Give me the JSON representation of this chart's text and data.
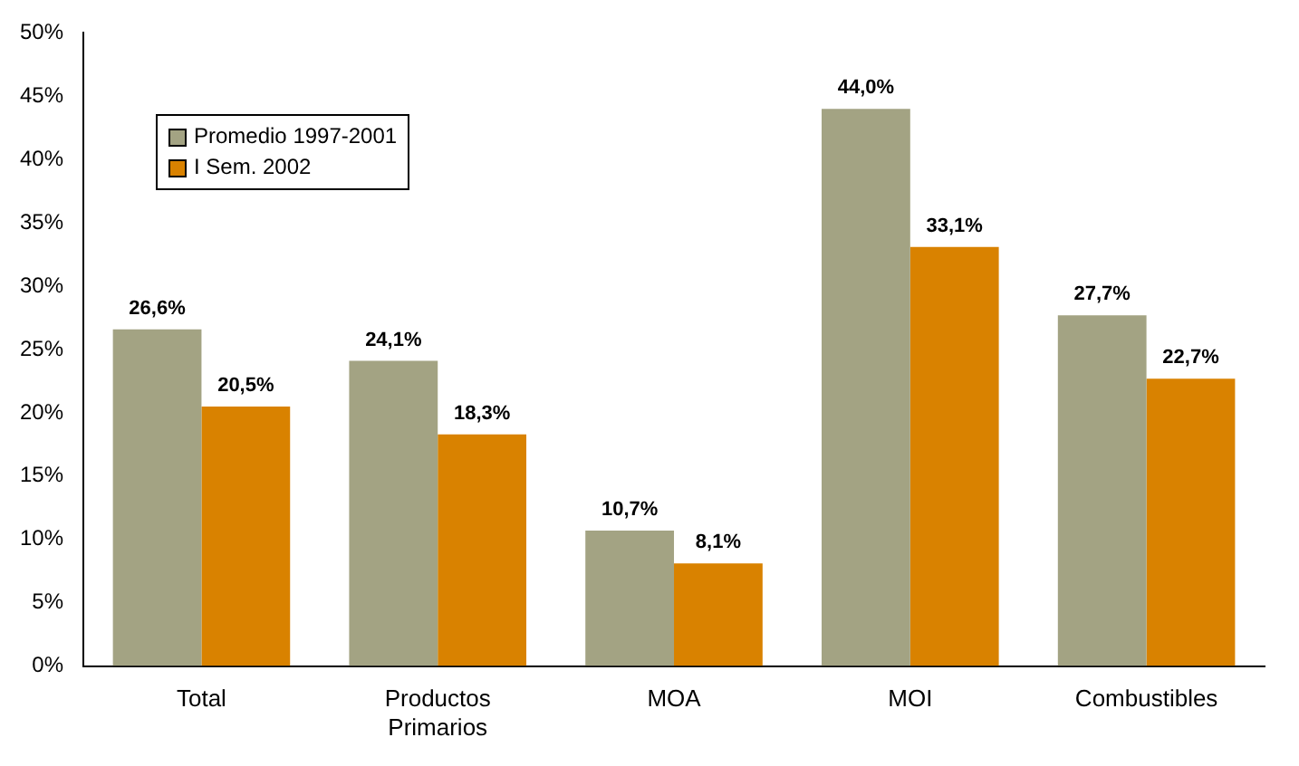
{
  "chart_data": {
    "type": "bar",
    "categories": [
      "Total",
      "Productos Primarios",
      "MOA",
      "MOI",
      "Combustibles"
    ],
    "series": [
      {
        "name": "Promedio 1997-2001",
        "color": "#a3a383",
        "values": [
          26.6,
          24.1,
          10.7,
          44.0,
          27.7
        ],
        "value_labels": [
          "26,6%",
          "24,1%",
          "10,7%",
          "44,0%",
          "27,7%"
        ]
      },
      {
        "name": "I Sem. 2002",
        "color": "#d98200",
        "values": [
          20.5,
          18.3,
          8.1,
          33.1,
          22.7
        ],
        "value_labels": [
          "20,5%",
          "18,3%",
          "8,1%",
          "33,1%",
          "22,7%"
        ]
      }
    ],
    "ylim": [
      0,
      50
    ],
    "yticks": [
      {
        "value": 0,
        "label": "0%"
      },
      {
        "value": 5,
        "label": "5%"
      },
      {
        "value": 10,
        "label": "10%"
      },
      {
        "value": 15,
        "label": "15%"
      },
      {
        "value": 20,
        "label": "20%"
      },
      {
        "value": 25,
        "label": "25%"
      },
      {
        "value": 30,
        "label": "30%"
      },
      {
        "value": 35,
        "label": "35%"
      },
      {
        "value": 40,
        "label": "40%"
      },
      {
        "value": 45,
        "label": "45%"
      },
      {
        "value": 50,
        "label": "50%"
      }
    ],
    "grid": false,
    "legend": "top left"
  }
}
